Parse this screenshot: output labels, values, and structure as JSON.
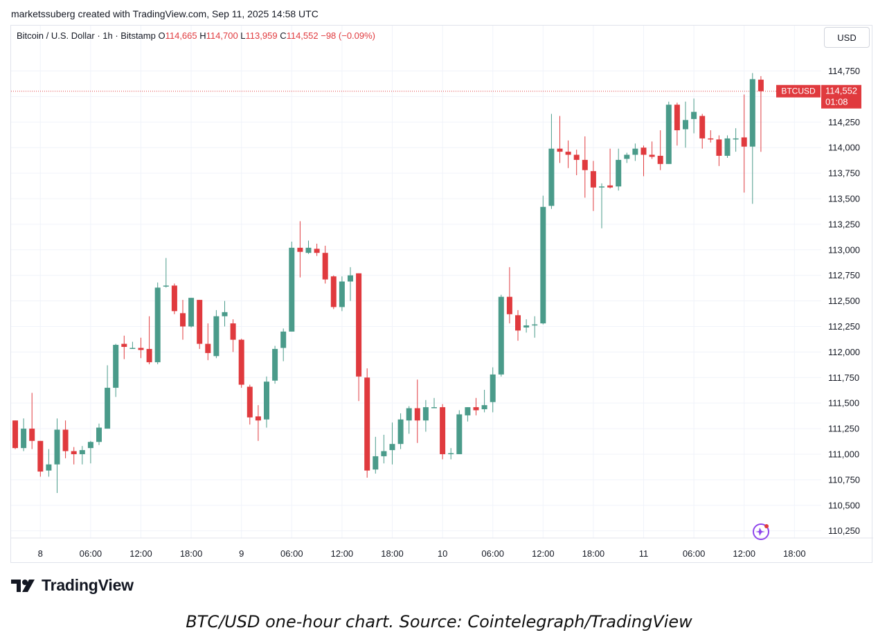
{
  "header": {
    "text": "marketssuberg created with TradingView.com, Sep 11, 2025 14:58 UTC"
  },
  "legend": {
    "title": "Bitcoin / U.S. Dollar · 1h · Bitstamp",
    "o_label": "O",
    "o_value": "114,665",
    "h_label": "H",
    "h_value": "114,700",
    "l_label": "L",
    "l_value": "113,959",
    "c_label": "C",
    "c_value": "114,552",
    "change": "−98 (−0.09%)"
  },
  "currency_button": "USD",
  "price_tag": {
    "symbol": "BTCUSD",
    "price": "114,552",
    "countdown": "01:08"
  },
  "brand": "TradingView",
  "caption": "BTC/USD one-hour chart. Source: Cointelegraph/TradingView",
  "colors": {
    "up": "#4a9b8a",
    "down": "#e03a3e",
    "grid": "#f0f3fa",
    "text": "#131722"
  },
  "icons": {
    "logo": "tradingview-logo-icon",
    "assistant": "sparkle-assistant-icon"
  },
  "chart_data": {
    "type": "candlestick",
    "symbol": "BTCUSD",
    "interval": "1h",
    "ylim": [
      110180,
      114950
    ],
    "yticks": [
      {
        "value": 110250,
        "label": "110,250"
      },
      {
        "value": 110500,
        "label": "110,500"
      },
      {
        "value": 110750,
        "label": "110,750"
      },
      {
        "value": 111000,
        "label": "111,000"
      },
      {
        "value": 111250,
        "label": "111,250"
      },
      {
        "value": 111500,
        "label": "111,500"
      },
      {
        "value": 111750,
        "label": "111,750"
      },
      {
        "value": 112000,
        "label": "112,000"
      },
      {
        "value": 112250,
        "label": "112,250"
      },
      {
        "value": 112500,
        "label": "112,500"
      },
      {
        "value": 112750,
        "label": "112,750"
      },
      {
        "value": 113000,
        "label": "113,000"
      },
      {
        "value": 113250,
        "label": "113,250"
      },
      {
        "value": 113500,
        "label": "113,500"
      },
      {
        "value": 113750,
        "label": "113,750"
      },
      {
        "value": 114000,
        "label": "114,000"
      },
      {
        "value": 114250,
        "label": "114,250"
      },
      {
        "value": 114500,
        "label": "114,500"
      },
      {
        "value": 114750,
        "label": "114,750"
      }
    ],
    "xticks": [
      {
        "index": 3,
        "label": "8"
      },
      {
        "index": 9,
        "label": "06:00"
      },
      {
        "index": 15,
        "label": "12:00"
      },
      {
        "index": 21,
        "label": "18:00"
      },
      {
        "index": 27,
        "label": "9"
      },
      {
        "index": 33,
        "label": "06:00"
      },
      {
        "index": 39,
        "label": "12:00"
      },
      {
        "index": 45,
        "label": "18:00"
      },
      {
        "index": 51,
        "label": "10"
      },
      {
        "index": 57,
        "label": "06:00"
      },
      {
        "index": 63,
        "label": "12:00"
      },
      {
        "index": 69,
        "label": "18:00"
      },
      {
        "index": 75,
        "label": "11"
      },
      {
        "index": 81,
        "label": "06:00"
      },
      {
        "index": 87,
        "label": "12:00"
      },
      {
        "index": 93,
        "label": "18:00"
      }
    ],
    "last_price": 114552,
    "candles": [
      {
        "o": 111330,
        "h": 111330,
        "l": 111050,
        "c": 111060
      },
      {
        "o": 111060,
        "h": 111350,
        "l": 111030,
        "c": 111250
      },
      {
        "o": 111250,
        "h": 111600,
        "l": 111050,
        "c": 111130
      },
      {
        "o": 111130,
        "h": 111130,
        "l": 110780,
        "c": 110830
      },
      {
        "o": 110840,
        "h": 111050,
        "l": 110780,
        "c": 110900
      },
      {
        "o": 110900,
        "h": 111350,
        "l": 110620,
        "c": 111240
      },
      {
        "o": 111240,
        "h": 111330,
        "l": 110960,
        "c": 111030
      },
      {
        "o": 111030,
        "h": 111070,
        "l": 110900,
        "c": 111000
      },
      {
        "o": 111000,
        "h": 111080,
        "l": 110900,
        "c": 111040
      },
      {
        "o": 111060,
        "h": 111130,
        "l": 110910,
        "c": 111120
      },
      {
        "o": 111120,
        "h": 111300,
        "l": 111090,
        "c": 111260
      },
      {
        "o": 111250,
        "h": 111870,
        "l": 111250,
        "c": 111650
      },
      {
        "o": 111650,
        "h": 112080,
        "l": 111560,
        "c": 112070
      },
      {
        "o": 112080,
        "h": 112160,
        "l": 111930,
        "c": 112050
      },
      {
        "o": 112040,
        "h": 112100,
        "l": 112040,
        "c": 112040
      },
      {
        "o": 112040,
        "h": 112140,
        "l": 111940,
        "c": 112020
      },
      {
        "o": 112030,
        "h": 112350,
        "l": 111880,
        "c": 111900
      },
      {
        "o": 111900,
        "h": 112680,
        "l": 111880,
        "c": 112630
      },
      {
        "o": 112640,
        "h": 112920,
        "l": 112630,
        "c": 112650
      },
      {
        "o": 112650,
        "h": 112670,
        "l": 112370,
        "c": 112400
      },
      {
        "o": 112380,
        "h": 112510,
        "l": 112120,
        "c": 112250
      },
      {
        "o": 112250,
        "h": 112530,
        "l": 112240,
        "c": 112530
      },
      {
        "o": 112510,
        "h": 112510,
        "l": 112030,
        "c": 112080
      },
      {
        "o": 112080,
        "h": 112280,
        "l": 111920,
        "c": 111990
      },
      {
        "o": 111960,
        "h": 112410,
        "l": 111940,
        "c": 112350
      },
      {
        "o": 112350,
        "h": 112500,
        "l": 112250,
        "c": 112390
      },
      {
        "o": 112280,
        "h": 112320,
        "l": 112000,
        "c": 112120
      },
      {
        "o": 112120,
        "h": 112130,
        "l": 111650,
        "c": 111680
      },
      {
        "o": 111660,
        "h": 111680,
        "l": 111290,
        "c": 111360
      },
      {
        "o": 111370,
        "h": 111480,
        "l": 111130,
        "c": 111330
      },
      {
        "o": 111340,
        "h": 111760,
        "l": 111260,
        "c": 111710
      },
      {
        "o": 111720,
        "h": 112060,
        "l": 111690,
        "c": 112030
      },
      {
        "o": 112040,
        "h": 112230,
        "l": 111910,
        "c": 112200
      },
      {
        "o": 112200,
        "h": 113080,
        "l": 112200,
        "c": 113020
      },
      {
        "o": 113020,
        "h": 113280,
        "l": 112730,
        "c": 112980
      },
      {
        "o": 112970,
        "h": 113090,
        "l": 112960,
        "c": 113020
      },
      {
        "o": 113010,
        "h": 113060,
        "l": 112940,
        "c": 112970
      },
      {
        "o": 112970,
        "h": 113040,
        "l": 112670,
        "c": 112710
      },
      {
        "o": 112740,
        "h": 112750,
        "l": 112420,
        "c": 112440
      },
      {
        "o": 112440,
        "h": 112740,
        "l": 112400,
        "c": 112690
      },
      {
        "o": 112690,
        "h": 112830,
        "l": 112500,
        "c": 112750
      },
      {
        "o": 112770,
        "h": 112770,
        "l": 111520,
        "c": 111760
      },
      {
        "o": 111750,
        "h": 111840,
        "l": 110770,
        "c": 110840
      },
      {
        "o": 110850,
        "h": 111170,
        "l": 110810,
        "c": 110980
      },
      {
        "o": 110980,
        "h": 111190,
        "l": 110910,
        "c": 111030
      },
      {
        "o": 111040,
        "h": 111310,
        "l": 110900,
        "c": 111100
      },
      {
        "o": 111100,
        "h": 111400,
        "l": 111050,
        "c": 111340
      },
      {
        "o": 111330,
        "h": 111470,
        "l": 111200,
        "c": 111450
      },
      {
        "o": 111450,
        "h": 111730,
        "l": 111110,
        "c": 111330
      },
      {
        "o": 111330,
        "h": 111530,
        "l": 111220,
        "c": 111460
      },
      {
        "o": 111460,
        "h": 111550,
        "l": 111450,
        "c": 111460
      },
      {
        "o": 111460,
        "h": 111490,
        "l": 110950,
        "c": 111000
      },
      {
        "o": 111010,
        "h": 111060,
        "l": 110950,
        "c": 111010
      },
      {
        "o": 111000,
        "h": 111430,
        "l": 111000,
        "c": 111390
      },
      {
        "o": 111380,
        "h": 111460,
        "l": 111320,
        "c": 111460
      },
      {
        "o": 111460,
        "h": 111550,
        "l": 111380,
        "c": 111430
      },
      {
        "o": 111440,
        "h": 111630,
        "l": 111410,
        "c": 111480
      },
      {
        "o": 111510,
        "h": 111850,
        "l": 111410,
        "c": 111780
      },
      {
        "o": 111780,
        "h": 112560,
        "l": 111760,
        "c": 112540
      },
      {
        "o": 112540,
        "h": 112830,
        "l": 112280,
        "c": 112370
      },
      {
        "o": 112360,
        "h": 112410,
        "l": 112110,
        "c": 112210
      },
      {
        "o": 112240,
        "h": 112320,
        "l": 112190,
        "c": 112260
      },
      {
        "o": 112270,
        "h": 112350,
        "l": 112140,
        "c": 112270
      },
      {
        "o": 112280,
        "h": 113530,
        "l": 112270,
        "c": 113420
      },
      {
        "o": 113430,
        "h": 114330,
        "l": 113400,
        "c": 113990
      },
      {
        "o": 113990,
        "h": 114310,
        "l": 113850,
        "c": 113960
      },
      {
        "o": 113960,
        "h": 114070,
        "l": 113800,
        "c": 113930
      },
      {
        "o": 113930,
        "h": 113980,
        "l": 113730,
        "c": 113880
      },
      {
        "o": 113880,
        "h": 114110,
        "l": 113510,
        "c": 113780
      },
      {
        "o": 113770,
        "h": 113870,
        "l": 113380,
        "c": 113610
      },
      {
        "o": 113610,
        "h": 113650,
        "l": 113210,
        "c": 113620
      },
      {
        "o": 113630,
        "h": 113990,
        "l": 113600,
        "c": 113610
      },
      {
        "o": 113620,
        "h": 113990,
        "l": 113580,
        "c": 113880
      },
      {
        "o": 113890,
        "h": 113950,
        "l": 113850,
        "c": 113930
      },
      {
        "o": 113930,
        "h": 114040,
        "l": 113870,
        "c": 113990
      },
      {
        "o": 114000,
        "h": 114020,
        "l": 113720,
        "c": 113930
      },
      {
        "o": 113930,
        "h": 114060,
        "l": 113890,
        "c": 113910
      },
      {
        "o": 113920,
        "h": 114170,
        "l": 113780,
        "c": 113840
      },
      {
        "o": 113840,
        "h": 114450,
        "l": 113840,
        "c": 114420
      },
      {
        "o": 114420,
        "h": 114440,
        "l": 114020,
        "c": 114170
      },
      {
        "o": 114180,
        "h": 114450,
        "l": 114000,
        "c": 114270
      },
      {
        "o": 114280,
        "h": 114480,
        "l": 114140,
        "c": 114350
      },
      {
        "o": 114310,
        "h": 114330,
        "l": 113990,
        "c": 114090
      },
      {
        "o": 114090,
        "h": 114170,
        "l": 114050,
        "c": 114080
      },
      {
        "o": 114080,
        "h": 114120,
        "l": 113820,
        "c": 113920
      },
      {
        "o": 113920,
        "h": 114120,
        "l": 113900,
        "c": 114090
      },
      {
        "o": 114090,
        "h": 114190,
        "l": 113960,
        "c": 114090
      },
      {
        "o": 114100,
        "h": 114520,
        "l": 113560,
        "c": 114010
      },
      {
        "o": 114010,
        "h": 114730,
        "l": 113450,
        "c": 114670
      },
      {
        "o": 114665,
        "h": 114700,
        "l": 113959,
        "c": 114552
      }
    ]
  }
}
